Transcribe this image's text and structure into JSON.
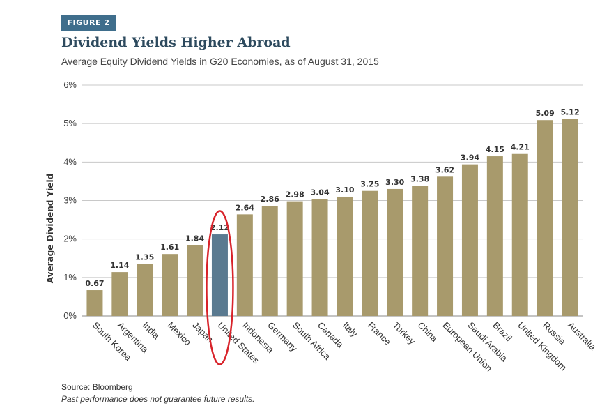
{
  "header": {
    "figure_tag": "FIGURE 2",
    "title": "Dividend Yields Higher Abroad",
    "subtitle": "Average Equity Dividend Yields in G20 Economies, as of August 31, 2015"
  },
  "footer": {
    "source": "Source: Bloomberg",
    "disclaimer": "Past performance does not guarantee future results."
  },
  "colors": {
    "bar": "#a89a6c",
    "highlight_bar": "#5a7a90",
    "highlight_label": "#5a7a90",
    "highlight_ring": "#d8232a"
  },
  "chart_data": {
    "type": "bar",
    "title": "Dividend Yields Higher Abroad",
    "ylabel": "Average Dividend Yield",
    "xlabel": "",
    "ylim": [
      0,
      6
    ],
    "yticks": [
      "0%",
      "1%",
      "2%",
      "3%",
      "4%",
      "5%",
      "6%"
    ],
    "grid": true,
    "highlight": "United States",
    "categories": [
      "South Korea",
      "Argentina",
      "India",
      "Mexico",
      "Japan",
      "United States",
      "Indonesia",
      "Germany",
      "South Africa",
      "Canada",
      "Italy",
      "France",
      "Turkey",
      "China",
      "European Union",
      "Saudi Arabia",
      "Brazil",
      "United Kingdom",
      "Russia",
      "Australia"
    ],
    "values": [
      0.67,
      1.14,
      1.35,
      1.61,
      1.84,
      2.12,
      2.64,
      2.86,
      2.98,
      3.04,
      3.1,
      3.25,
      3.3,
      3.38,
      3.62,
      3.94,
      4.15,
      4.21,
      5.09,
      5.12
    ],
    "value_labels": [
      "0.67",
      "1.14",
      "1.35",
      "1.61",
      "1.84",
      "2.12",
      "2.64",
      "2.86",
      "2.98",
      "3.04",
      "3.10",
      "3.25",
      "3.30",
      "3.38",
      "3.62",
      "3.94",
      "4.15",
      "4.21",
      "5.09",
      "5.12"
    ]
  }
}
